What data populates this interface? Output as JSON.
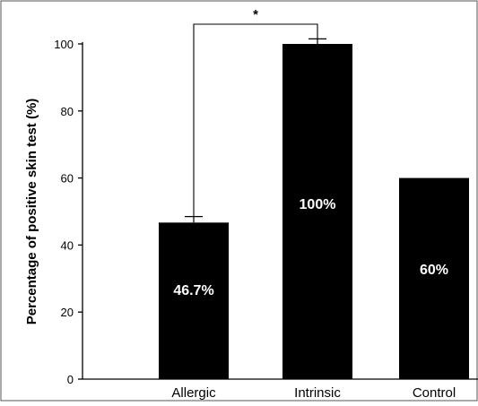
{
  "chart_data": {
    "type": "bar",
    "categories": [
      "Allergic",
      "Intrinsic",
      "Control"
    ],
    "values": [
      46.7,
      100,
      60
    ],
    "error_caps": [
      48.5,
      101.5,
      null
    ],
    "data_labels": [
      "46.7%",
      "100%",
      "60%"
    ],
    "title": "",
    "xlabel": "",
    "ylabel": "Percentage of positive skin test (%)",
    "ylim": [
      0,
      100
    ],
    "yticks": [
      0,
      20,
      40,
      60,
      80,
      100
    ],
    "grid": false,
    "significance": {
      "between": [
        "Allergic",
        "Intrinsic"
      ],
      "symbol": "*"
    },
    "bar_color": "#000000",
    "label_color": "#ffffff"
  }
}
